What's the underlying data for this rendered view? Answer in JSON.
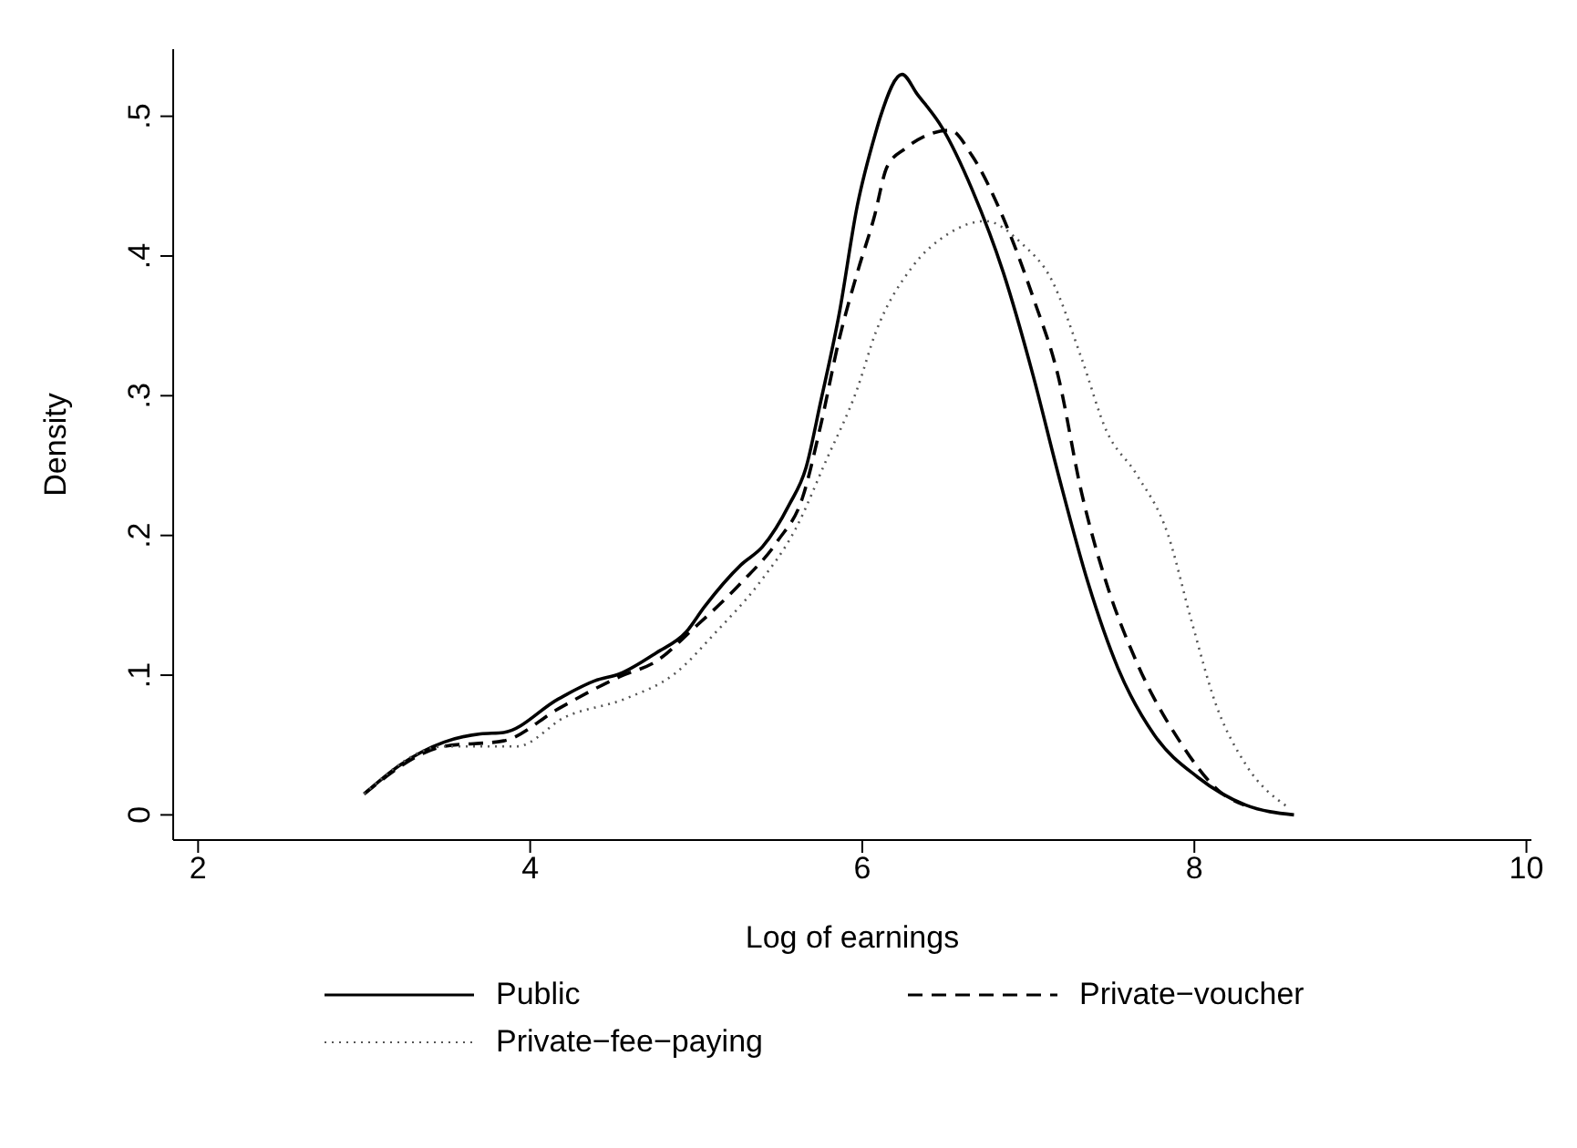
{
  "chart_data": {
    "type": "line",
    "xlabel": "Log of earnings",
    "ylabel": "Density",
    "xlim": [
      1.85,
      10.03
    ],
    "xticks": [
      2,
      4,
      6,
      8,
      10
    ],
    "ylim": [
      -0.018,
      0.548
    ],
    "yticks": [
      0,
      {
        "value": 0.1,
        "label": ".1"
      },
      {
        "value": 0.2,
        "label": ".2"
      },
      {
        "value": 0.3,
        "label": ".3"
      },
      {
        "value": 0.4,
        "label": ".4"
      },
      {
        "value": 0.5,
        "label": ".5"
      }
    ],
    "legend": "bottom",
    "marker": "none",
    "series": [
      {
        "name": "Public",
        "color": "#000000",
        "line_style": "solid",
        "x": [
          3.0,
          3.22,
          3.48,
          3.7,
          3.84,
          4.17,
          4.39,
          4.54,
          4.76,
          4.94,
          5.05,
          5.27,
          5.4,
          5.56,
          5.66,
          5.75,
          5.86,
          5.97,
          6.08,
          6.11,
          6.24,
          6.33,
          6.48,
          6.66,
          6.85,
          7.03,
          7.18,
          7.36,
          7.54,
          7.76,
          8.02,
          8.31,
          8.6
        ],
        "values": [
          0.015,
          0.036,
          0.052,
          0.058,
          0.059,
          0.083,
          0.096,
          0.101,
          0.116,
          0.131,
          0.149,
          0.179,
          0.192,
          0.222,
          0.248,
          0.296,
          0.358,
          0.436,
          0.488,
          0.5,
          0.53,
          0.516,
          0.492,
          0.448,
          0.388,
          0.314,
          0.244,
          0.166,
          0.105,
          0.057,
          0.027,
          0.007,
          0.0
        ]
      },
      {
        "name": "Private−voucher",
        "color": "#000000",
        "line_style": "dashed",
        "x": [
          3.0,
          3.48,
          3.84,
          4.17,
          4.54,
          4.76,
          4.98,
          5.27,
          5.49,
          5.64,
          5.75,
          5.86,
          5.97,
          6.07,
          6.15,
          6.26,
          6.53,
          6.66,
          6.85,
          7.03,
          7.18,
          7.32,
          7.47,
          7.65,
          7.91,
          8.16,
          8.3
        ],
        "values": [
          0.015,
          0.049,
          0.053,
          0.076,
          0.099,
          0.11,
          0.133,
          0.166,
          0.196,
          0.227,
          0.279,
          0.34,
          0.388,
          0.427,
          0.464,
          0.477,
          0.49,
          0.472,
          0.427,
          0.37,
          0.314,
          0.231,
          0.166,
          0.11,
          0.053,
          0.016,
          0.007
        ]
      },
      {
        "name": "Private−fee−paying",
        "color": "#555555",
        "line_style": "dotted",
        "x": [
          3.0,
          3.48,
          3.92,
          4.21,
          4.57,
          4.87,
          5.12,
          5.38,
          5.6,
          5.78,
          5.97,
          6.08,
          6.3,
          6.52,
          6.74,
          6.96,
          7.14,
          7.32,
          7.47,
          7.65,
          7.84,
          7.98,
          8.13,
          8.31,
          8.57
        ],
        "values": [
          0.015,
          0.049,
          0.049,
          0.07,
          0.083,
          0.101,
          0.131,
          0.166,
          0.205,
          0.253,
          0.305,
          0.345,
          0.392,
          0.416,
          0.425,
          0.409,
          0.383,
          0.327,
          0.275,
          0.244,
          0.201,
          0.14,
          0.079,
          0.036,
          0.005
        ]
      }
    ]
  }
}
